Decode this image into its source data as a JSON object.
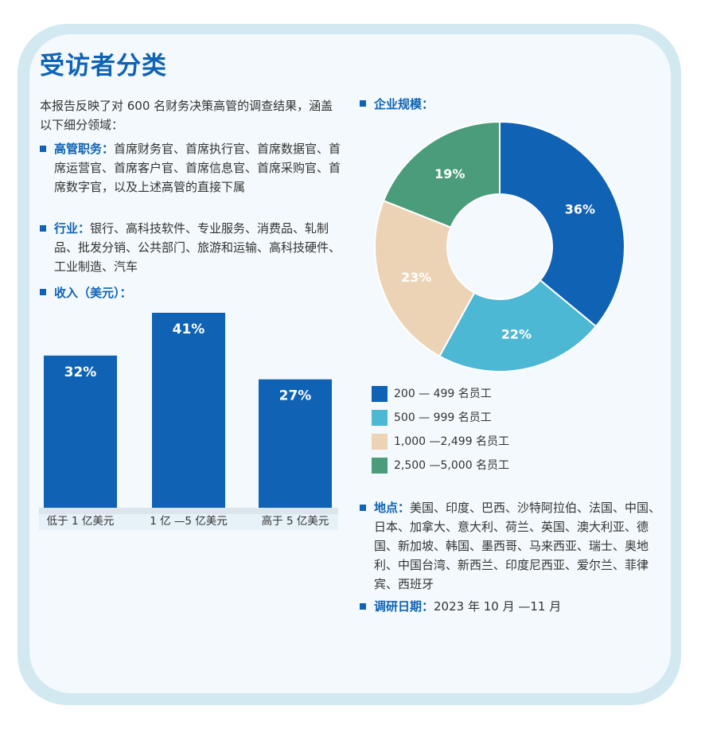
{
  "title": "受访者分类",
  "intro": "本报告反映了对 600 名财务决策高管的调查结果，涵盖以下细分领域：",
  "executives": {
    "label": "高管职务：",
    "text": "首席财务官、首席执行官、首席数据官、首席运营官、首席客户官、首席信息官、首席采购官、首席数字官，以及上述高管的直接下属"
  },
  "industry": {
    "label": "行业：",
    "text": "银行、高科技软件、专业服务、消费品、轧制品、批发分销、公共部门、旅游和运输、高科技硬件、工业制造、汽车"
  },
  "revenue_heading": "收入（美元）：",
  "size_heading": "企业规模：",
  "location": {
    "label": "地点：",
    "text": "美国、印度、巴西、沙特阿拉伯、法国、中国、日本、加拿大、意大利、荷兰、英国、澳大利亚、德国、新加坡、韩国、墨西哥、马来西亚、瑞士、奥地利、中国台湾、新西兰、印度尼西亚、爱尔兰、菲律宾、西班牙"
  },
  "survey_date": {
    "label": "调研日期：",
    "text": "2023 年 10 月 —11 月"
  },
  "chart_data": [
    {
      "type": "bar",
      "categories": [
        "低于 1 亿美元",
        "1 亿 —5 亿美元",
        "高于 5 亿美元"
      ],
      "values": [
        32,
        41,
        27
      ],
      "data_labels": [
        "32%",
        "41%",
        "27%"
      ],
      "ylim": [
        0,
        41
      ],
      "color": "#0f62b4",
      "grid": false
    },
    {
      "type": "pie",
      "donut": true,
      "labels": [
        "200 — 499 名员工",
        "500 — 999 名员工",
        "1,000 —2,499 名员工",
        "2,500 —5,000 名员工"
      ],
      "values": [
        36,
        22,
        23,
        19
      ],
      "data_labels": [
        "36%",
        "22%",
        "23%",
        "19%"
      ],
      "colors": [
        "#0f62b4",
        "#4db8d4",
        "#ecd3b6",
        "#4a9c7b"
      ],
      "legend": "bottom"
    }
  ]
}
